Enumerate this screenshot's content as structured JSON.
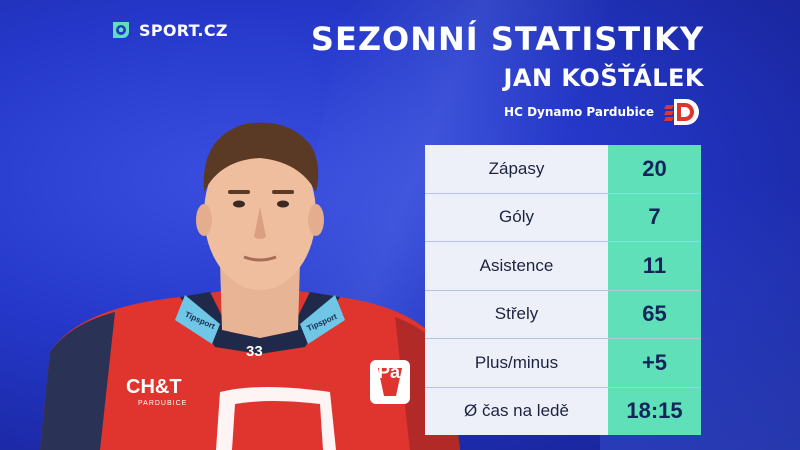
{
  "brand": {
    "logo_text": "SPORT.CZ",
    "logo_icon": "sport-cz-ball-icon"
  },
  "header": {
    "title": "SEZONNÍ STATISTIKY",
    "player_name": "JAN KOŠŤÁLEK",
    "team": "HC Dynamo Pardubice",
    "team_logo_icon": "hc-dynamo-pardubice-logo"
  },
  "jersey": {
    "number": "33",
    "sponsor_main": "CH&T",
    "sponsor_sub": "PARDUBICE",
    "collar_sponsor": "Tipsport",
    "chest_text": "Pa"
  },
  "stats": [
    {
      "label": "Zápasy",
      "value": "20"
    },
    {
      "label": "Góly",
      "value": "7"
    },
    {
      "label": "Asistence",
      "value": "11"
    },
    {
      "label": "Střely",
      "value": "65"
    },
    {
      "label": "Plus/minus",
      "value": "+5"
    },
    {
      "label": "Ø čas na ledě",
      "value": "18:15"
    }
  ],
  "colors": {
    "background": "#2437c8",
    "label_cell": "#eef0f9",
    "value_cell": "#5fe0b8",
    "jersey_red": "#e0342f",
    "logo_accent": "#5fe0b8"
  }
}
